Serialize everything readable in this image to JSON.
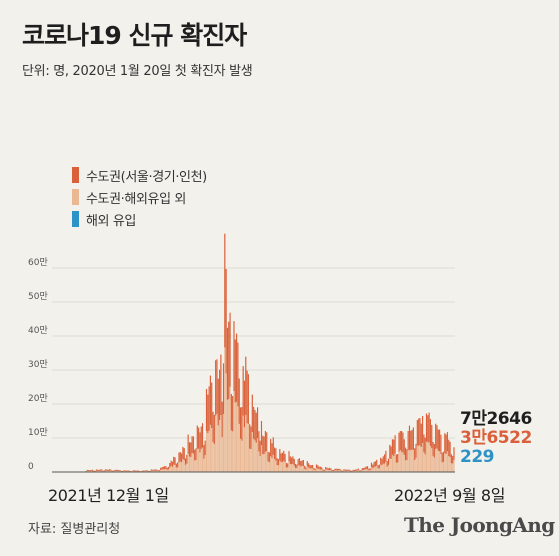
{
  "title": "코로나19 신규 확진자",
  "subtitle": "단위: 명, 2020년 1월 20일 첫 확진자 발생",
  "source": "자료: 질병관리청",
  "brand": "The JoongAng",
  "colors": {
    "metro": "#d9603a",
    "metro_other": "#ebb894",
    "overseas": "#2d93c6",
    "total_text": "#1e1e1e"
  },
  "end_values": {
    "total": "7만2646",
    "metro": "3만6522",
    "overseas": "229"
  },
  "chart_data": {
    "type": "bar",
    "title": "",
    "xlabel": "",
    "ylabel": "",
    "stacked": true,
    "grid": true,
    "ylim": [
      0,
      650000
    ],
    "yticks": [
      0,
      100000,
      200000,
      300000,
      400000,
      500000,
      600000
    ],
    "ytick_labels": [
      "0",
      "10만",
      "20만",
      "30만",
      "40만",
      "50만",
      "60만"
    ],
    "x_start": "2021-12-01",
    "x_end": "2022-09-08",
    "x_labels": [
      {
        "date": "2021-12-01",
        "label": "2021년 12월 1일"
      },
      {
        "date": "2022-09-08",
        "label": "2022년 9월 8일"
      }
    ],
    "legend_position": "top-left",
    "series": [
      {
        "name": "수도권(서울·경기·인천)",
        "color": "#d9603a"
      },
      {
        "name": "수도권·해외유입 외",
        "color": "#ebb894"
      },
      {
        "name": "해외 유입",
        "color": "#2d93c6"
      }
    ],
    "total_anchors": [
      [
        "2021-12-01",
        5100
      ],
      [
        "2021-12-15",
        7800
      ],
      [
        "2022-01-01",
        4400
      ],
      [
        "2022-01-15",
        4100
      ],
      [
        "2022-01-25",
        8500
      ],
      [
        "2022-02-01",
        20000
      ],
      [
        "2022-02-10",
        54000
      ],
      [
        "2022-02-20",
        104000
      ],
      [
        "2022-02-28",
        140000
      ],
      [
        "2022-03-05",
        240000
      ],
      [
        "2022-03-10",
        327000
      ],
      [
        "2022-03-14",
        310000
      ],
      [
        "2022-03-17",
        621000
      ],
      [
        "2022-03-20",
        420000
      ],
      [
        "2022-03-24",
        395000
      ],
      [
        "2022-03-28",
        320000
      ],
      [
        "2022-04-03",
        290000
      ],
      [
        "2022-04-07",
        205000
      ],
      [
        "2022-04-12",
        195000
      ],
      [
        "2022-04-15",
        125000
      ],
      [
        "2022-04-20",
        110000
      ],
      [
        "2022-04-25",
        76000
      ],
      [
        "2022-05-01",
        55000
      ],
      [
        "2022-05-10",
        43000
      ],
      [
        "2022-05-20",
        24000
      ],
      [
        "2022-06-01",
        13000
      ],
      [
        "2022-06-15",
        7000
      ],
      [
        "2022-06-25",
        6500
      ],
      [
        "2022-07-05",
        18000
      ],
      [
        "2022-07-15",
        40000
      ],
      [
        "2022-07-25",
        100000
      ],
      [
        "2022-08-01",
        110000
      ],
      [
        "2022-08-10",
        150000
      ],
      [
        "2022-08-17",
        180000
      ],
      [
        "2022-08-23",
        150000
      ],
      [
        "2022-08-30",
        118000
      ],
      [
        "2022-09-05",
        103000
      ],
      [
        "2022-09-08",
        72646
      ]
    ],
    "metro_share": 0.5,
    "last_point": {
      "date": "2022-09-08",
      "total": 72646,
      "metro": 36522,
      "overseas": 229
    }
  }
}
